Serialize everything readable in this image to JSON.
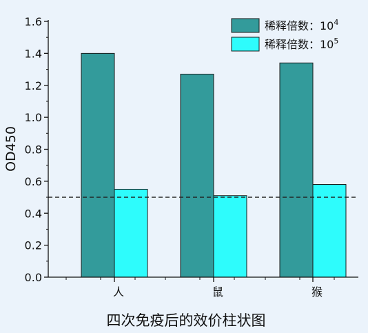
{
  "chart_data": {
    "type": "bar",
    "title": "四次免疫后的效价柱状图",
    "xlabel": "",
    "ylabel": "OD450",
    "categories": [
      "人",
      "鼠",
      "猴"
    ],
    "series": [
      {
        "name": "稀释倍数：10",
        "name_sup": "4",
        "color": "#339b9b",
        "values": [
          1.4,
          1.27,
          1.34
        ]
      },
      {
        "name": "稀释倍数：10",
        "name_sup": "5",
        "color": "#2efcfc",
        "values": [
          0.55,
          0.51,
          0.58
        ]
      }
    ],
    "ylim": [
      0,
      1.6
    ],
    "yticks": [
      "0.0",
      "0.2",
      "0.4",
      "0.6",
      "0.8",
      "1.0",
      "1.2",
      "1.4",
      "1.6"
    ],
    "reference_line": {
      "y": 0.5,
      "style": "dashed"
    },
    "legend_position": "top-right",
    "grid": false
  }
}
